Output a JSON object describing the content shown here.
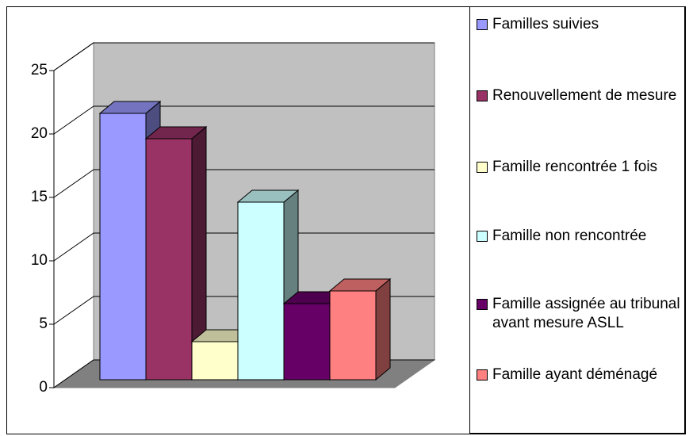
{
  "chart_data": {
    "type": "bar",
    "series": [
      {
        "name": "Familles suivies",
        "color": "#9999ff",
        "values": [
          21
        ]
      },
      {
        "name": "Renouvellement de mesure",
        "color": "#993366",
        "values": [
          19
        ]
      },
      {
        "name": "Famille rencontrée 1 fois",
        "color": "#ffffcc",
        "values": [
          3
        ]
      },
      {
        "name": "Famille non rencontrée",
        "color": "#ccffff",
        "values": [
          14
        ]
      },
      {
        "name": "Famille assignée au tribunal avant mesure ASLL",
        "color": "#660066",
        "values": [
          6
        ]
      },
      {
        "name": "Famille ayant déménagé",
        "color": "#ff8080",
        "values": [
          7
        ]
      }
    ],
    "ylim": [
      0,
      25
    ],
    "yticks": [
      0,
      5,
      10,
      15,
      20,
      25
    ],
    "grid": true,
    "legend": "right"
  }
}
